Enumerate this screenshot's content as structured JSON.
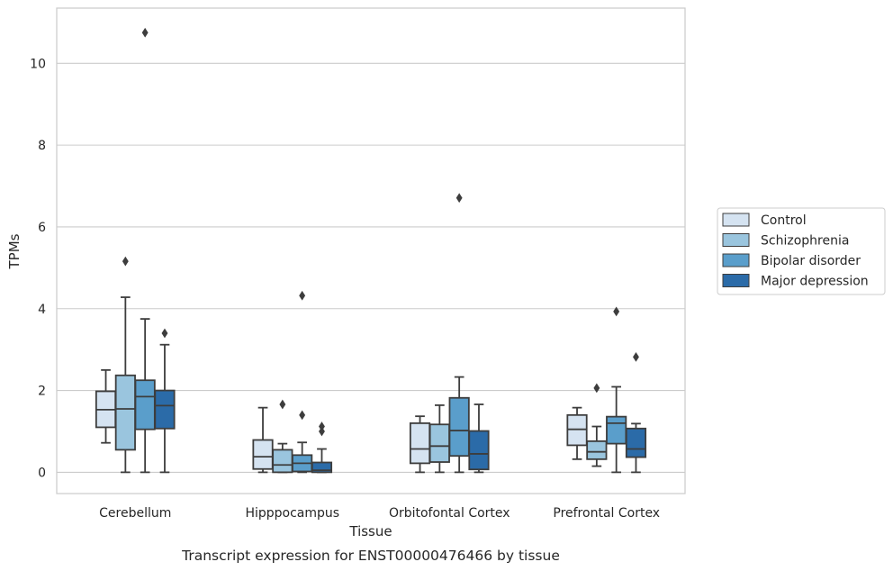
{
  "chart_data": {
    "type": "box",
    "caption": "Transcript expression for ENST00000476466 by tissue",
    "xlabel": "Tissue",
    "ylabel": "TPMs",
    "ylim": [
      -0.52,
      11.35
    ],
    "yticks": [
      0,
      2,
      4,
      6,
      8,
      10
    ],
    "grid": "horizontal",
    "legend_position": "right",
    "categories": [
      "Cerebellum",
      "Hipppocampus",
      "Orbitofontal Cortex",
      "Prefrontal Cortex"
    ],
    "series": [
      {
        "name": "Control",
        "color": "#d5e3f1",
        "boxes": [
          {
            "whislo": 0.72,
            "q1": 1.1,
            "med": 1.53,
            "q3": 1.98,
            "whishi": 2.5,
            "fliers": []
          },
          {
            "whislo": 0.0,
            "q1": 0.08,
            "med": 0.38,
            "q3": 0.79,
            "whishi": 1.58,
            "fliers": []
          },
          {
            "whislo": 0.0,
            "q1": 0.22,
            "med": 0.57,
            "q3": 1.2,
            "whishi": 1.37,
            "fliers": []
          },
          {
            "whislo": 0.32,
            "q1": 0.66,
            "med": 1.05,
            "q3": 1.4,
            "whishi": 1.58,
            "fliers": []
          }
        ]
      },
      {
        "name": "Schizophrenia",
        "color": "#9ac5de",
        "boxes": [
          {
            "whislo": 0.0,
            "q1": 0.55,
            "med": 1.55,
            "q3": 2.37,
            "whishi": 4.28,
            "fliers": [
              5.16
            ]
          },
          {
            "whislo": 0.0,
            "q1": 0.0,
            "med": 0.18,
            "q3": 0.55,
            "whishi": 0.7,
            "fliers": [
              1.66
            ]
          },
          {
            "whislo": 0.0,
            "q1": 0.25,
            "med": 0.64,
            "q3": 1.17,
            "whishi": 1.64,
            "fliers": []
          },
          {
            "whislo": 0.15,
            "q1": 0.32,
            "med": 0.5,
            "q3": 0.76,
            "whishi": 1.12,
            "fliers": [
              2.06
            ]
          }
        ]
      },
      {
        "name": "Bipolar disorder",
        "color": "#5a9ecb",
        "boxes": [
          {
            "whislo": 0.0,
            "q1": 1.05,
            "med": 1.85,
            "q3": 2.25,
            "whishi": 3.75,
            "fliers": [
              10.75
            ]
          },
          {
            "whislo": 0.0,
            "q1": 0.02,
            "med": 0.22,
            "q3": 0.42,
            "whishi": 0.73,
            "fliers": [
              1.4,
              4.32
            ]
          },
          {
            "whislo": 0.0,
            "q1": 0.4,
            "med": 1.02,
            "q3": 1.82,
            "whishi": 2.33,
            "fliers": [
              6.71
            ]
          },
          {
            "whislo": 0.0,
            "q1": 0.7,
            "med": 1.2,
            "q3": 1.36,
            "whishi": 2.09,
            "fliers": [
              3.93
            ]
          }
        ]
      },
      {
        "name": "Major depression",
        "color": "#2b6ba8",
        "boxes": [
          {
            "whislo": 0.0,
            "q1": 1.07,
            "med": 1.63,
            "q3": 2.0,
            "whishi": 3.12,
            "fliers": [
              3.4
            ]
          },
          {
            "whislo": 0.0,
            "q1": 0.0,
            "med": 0.05,
            "q3": 0.24,
            "whishi": 0.57,
            "fliers": [
              1.0,
              1.12
            ]
          },
          {
            "whislo": 0.0,
            "q1": 0.07,
            "med": 0.45,
            "q3": 1.01,
            "whishi": 1.66,
            "fliers": []
          },
          {
            "whislo": 0.0,
            "q1": 0.37,
            "med": 0.57,
            "q3": 1.07,
            "whishi": 1.19,
            "fliers": [
              2.82
            ]
          }
        ]
      }
    ]
  }
}
